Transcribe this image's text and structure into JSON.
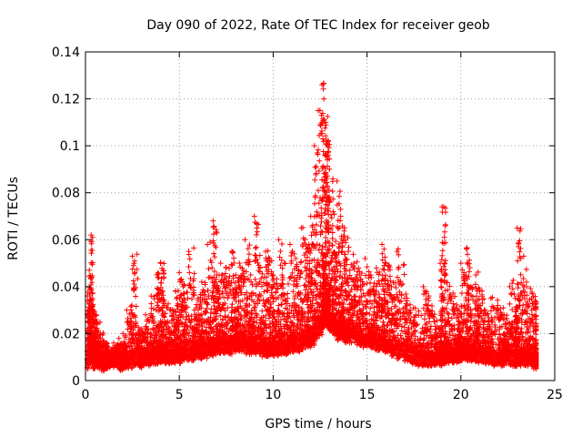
{
  "chart_data": {
    "type": "scatter",
    "title": "Day 090 of 2022, Rate Of TEC Index for receiver geob",
    "xlabel": "GPS time / hours",
    "ylabel": "ROTI / TECUs",
    "xlim": [
      0,
      25
    ],
    "ylim": [
      0,
      0.14
    ],
    "xticks": [
      "0",
      "5",
      "10",
      "15",
      "20",
      "25"
    ],
    "yticks": [
      "0",
      "0.02",
      "0.04",
      "0.06",
      "0.08",
      "0.1",
      "0.12",
      "0.14"
    ],
    "grid": true,
    "marker": "+",
    "color": "#ff0000",
    "series": [
      {
        "x": [
          0.1,
          0.2,
          0.3,
          0.4,
          0.5,
          0.6,
          0.8,
          1.0,
          1.2,
          1.5,
          1.8,
          2.0,
          2.2,
          2.5,
          2.8,
          3.0,
          3.2,
          3.5,
          3.8,
          4.0,
          4.2,
          4.5,
          4.8,
          5.0,
          5.2,
          5.5,
          5.8,
          6.0,
          6.2,
          6.5,
          6.8,
          7.0,
          7.2,
          7.5,
          7.8,
          8.0,
          8.2,
          8.5,
          8.8,
          9.0,
          9.3,
          9.6,
          9.8,
          10.0,
          10.3,
          10.6,
          10.9,
          11.2,
          11.5,
          11.8,
          12.0,
          12.2,
          12.4,
          12.6,
          12.7,
          12.8,
          12.9,
          13.0,
          13.2,
          13.4,
          13.6,
          13.8,
          14.0,
          14.3,
          14.6,
          14.9,
          15.2,
          15.5,
          15.8,
          16.0,
          16.3,
          16.6,
          17.0,
          17.3,
          17.6,
          18.0,
          18.3,
          18.6,
          18.9,
          19.0,
          19.2,
          19.5,
          19.8,
          20.0,
          20.3,
          20.5,
          20.8,
          21.0,
          21.3,
          21.6,
          22.0,
          22.3,
          22.6,
          22.9,
          23.0,
          23.2,
          23.5,
          23.8,
          24.0
        ],
        "y": [
          0.036,
          0.047,
          0.062,
          0.03,
          0.028,
          0.024,
          0.018,
          0.015,
          0.012,
          0.016,
          0.014,
          0.02,
          0.03,
          0.053,
          0.02,
          0.022,
          0.028,
          0.036,
          0.045,
          0.05,
          0.032,
          0.03,
          0.038,
          0.046,
          0.04,
          0.055,
          0.03,
          0.035,
          0.042,
          0.058,
          0.068,
          0.045,
          0.05,
          0.048,
          0.055,
          0.045,
          0.05,
          0.06,
          0.045,
          0.07,
          0.048,
          0.055,
          0.052,
          0.045,
          0.06,
          0.05,
          0.058,
          0.052,
          0.065,
          0.056,
          0.07,
          0.1,
          0.115,
          0.126,
          0.12,
          0.11,
          0.1,
          0.09,
          0.072,
          0.085,
          0.07,
          0.065,
          0.055,
          0.05,
          0.045,
          0.052,
          0.045,
          0.048,
          0.058,
          0.05,
          0.04,
          0.055,
          0.035,
          0.03,
          0.028,
          0.04,
          0.03,
          0.025,
          0.05,
          0.074,
          0.045,
          0.035,
          0.03,
          0.05,
          0.056,
          0.04,
          0.045,
          0.038,
          0.03,
          0.035,
          0.03,
          0.028,
          0.04,
          0.035,
          0.065,
          0.052,
          0.04,
          0.037,
          0.033
        ],
        "baseline": [
          0.008,
          0.01,
          0.01,
          0.008,
          0.009,
          0.008,
          0.007,
          0.008,
          0.008,
          0.009,
          0.007,
          0.008,
          0.008,
          0.009,
          0.008,
          0.009,
          0.009,
          0.01,
          0.01,
          0.01,
          0.01,
          0.01,
          0.011,
          0.01,
          0.011,
          0.011,
          0.012,
          0.012,
          0.012,
          0.013,
          0.013,
          0.014,
          0.014,
          0.014,
          0.015,
          0.015,
          0.015,
          0.014,
          0.014,
          0.014,
          0.013,
          0.013,
          0.013,
          0.013,
          0.014,
          0.014,
          0.015,
          0.015,
          0.016,
          0.017,
          0.018,
          0.02,
          0.022,
          0.025,
          0.026,
          0.026,
          0.025,
          0.024,
          0.022,
          0.02,
          0.02,
          0.019,
          0.019,
          0.018,
          0.017,
          0.017,
          0.016,
          0.015,
          0.015,
          0.014,
          0.013,
          0.012,
          0.011,
          0.01,
          0.009,
          0.009,
          0.009,
          0.009,
          0.009,
          0.01,
          0.01,
          0.01,
          0.011,
          0.011,
          0.011,
          0.011,
          0.01,
          0.01,
          0.01,
          0.009,
          0.009,
          0.009,
          0.009,
          0.009,
          0.009,
          0.009,
          0.009,
          0.008,
          0.008
        ]
      }
    ]
  }
}
